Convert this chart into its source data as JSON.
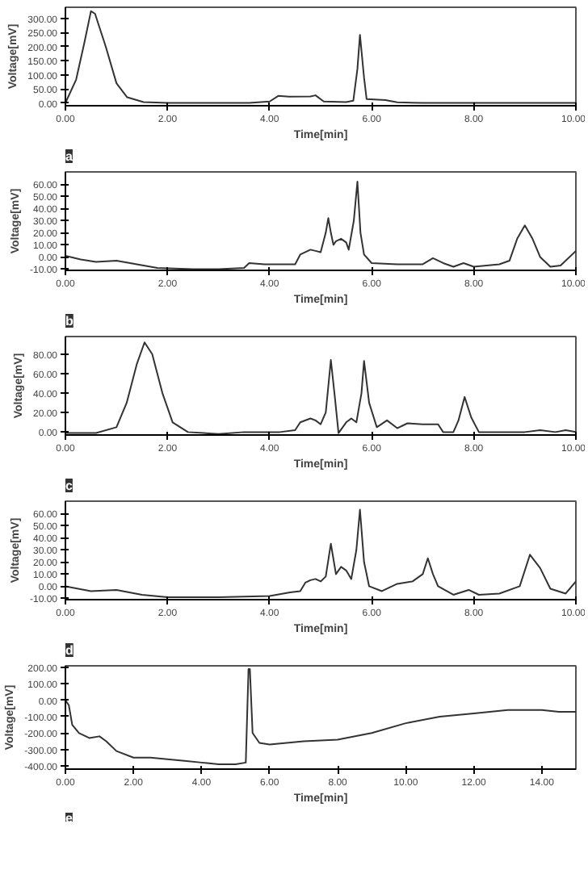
{
  "chart_data": [
    {
      "type": "line",
      "xlabel": "Time[min]",
      "ylabel": "Voltage[mV]",
      "annotations": [
        "a"
      ],
      "grid": false,
      "marker": "none",
      "line_style": "solid",
      "xlim": [
        0,
        10
      ],
      "ylim": [
        -10,
        340
      ],
      "xticks": [
        {
          "value": 0,
          "label": "0.00"
        },
        {
          "value": 2,
          "label": "2.00"
        },
        {
          "value": 4,
          "label": "4.00"
        },
        {
          "value": 6,
          "label": "6.00"
        },
        {
          "value": 8,
          "label": "8.00"
        },
        {
          "value": 10,
          "label": "10.00"
        }
      ],
      "yticks": [
        {
          "value": 0,
          "label": "0.00"
        },
        {
          "value": 50,
          "label": "50.00"
        },
        {
          "value": 100,
          "label": "100.00"
        },
        {
          "value": 150,
          "label": "150.00"
        },
        {
          "value": 200,
          "label": "200.00"
        },
        {
          "value": 250,
          "label": "250.00"
        },
        {
          "value": 300,
          "label": "300.00"
        }
      ],
      "series": [
        {
          "color": "#333333",
          "x": [
            0,
            0.21,
            0.37,
            0.5,
            0.58,
            0.79,
            1.0,
            1.21,
            1.53,
            2.0,
            3.0,
            3.6,
            4.0,
            4.17,
            4.38,
            4.8,
            4.9,
            5.06,
            5.5,
            5.64,
            5.72,
            5.77,
            5.85,
            5.9,
            6.27,
            6.5,
            7.0,
            8.0,
            9.0,
            10.0
          ],
          "values": [
            0,
            83,
            213,
            326,
            317,
            200,
            70,
            20,
            3,
            0,
            0,
            0,
            5,
            25,
            22,
            23,
            27,
            5,
            3,
            8,
            120,
            242,
            90,
            14,
            10,
            2,
            0,
            0,
            0,
            0
          ]
        }
      ]
    },
    {
      "type": "line",
      "xlabel": "Time[min]",
      "ylabel": "Voltage[mV]",
      "annotations": [
        "b"
      ],
      "grid": false,
      "marker": "none",
      "line_style": "solid",
      "xlim": [
        0,
        10
      ],
      "ylim": [
        -11,
        70
      ],
      "xticks": [
        {
          "value": 0,
          "label": "0.00"
        },
        {
          "value": 2,
          "label": "2.00"
        },
        {
          "value": 4,
          "label": "4.00"
        },
        {
          "value": 6,
          "label": "6.00"
        },
        {
          "value": 8,
          "label": "8.00"
        },
        {
          "value": 10,
          "label": "10.00"
        }
      ],
      "yticks": [
        {
          "value": -10,
          "label": "-10.00"
        },
        {
          "value": 0,
          "label": "0.00"
        },
        {
          "value": 10,
          "label": "10.00"
        },
        {
          "value": 20,
          "label": "20.00"
        },
        {
          "value": 30,
          "label": "30.00"
        },
        {
          "value": 40,
          "label": "40.00"
        },
        {
          "value": 50,
          "label": "50.00"
        },
        {
          "value": 60,
          "label": "60.00"
        }
      ],
      "series": [
        {
          "color": "#333333",
          "x": [
            0,
            0.3,
            0.6,
            1.0,
            1.4,
            1.8,
            2.5,
            3.0,
            3.5,
            3.6,
            3.9,
            4.2,
            4.5,
            4.6,
            4.7,
            4.8,
            4.9,
            5.0,
            5.1,
            5.15,
            5.2,
            5.25,
            5.3,
            5.4,
            5.5,
            5.55,
            5.65,
            5.72,
            5.78,
            5.85,
            6.0,
            6.5,
            7.0,
            7.2,
            7.4,
            7.6,
            7.8,
            8.0,
            8.5,
            8.7,
            8.85,
            9.0,
            9.15,
            9.3,
            9.5,
            9.7,
            10.0
          ],
          "values": [
            1,
            -2,
            -4,
            -3,
            -6,
            -9,
            -10,
            -10,
            -9,
            -5,
            -6,
            -6,
            -6,
            2,
            4,
            6,
            5,
            4,
            20,
            32,
            20,
            10,
            13,
            15,
            12,
            6,
            30,
            62,
            20,
            2,
            -5,
            -6,
            -6,
            -1,
            -5,
            -8,
            -5,
            -8,
            -6,
            -3,
            15,
            26,
            15,
            0,
            -8,
            -7,
            5
          ]
        }
      ]
    },
    {
      "type": "line",
      "xlabel": "Time[min]",
      "ylabel": "Voltage[mV]",
      "annotations": [
        "c"
      ],
      "grid": false,
      "marker": "none",
      "line_style": "solid",
      "xlim": [
        0,
        10
      ],
      "ylim": [
        -3,
        98
      ],
      "xticks": [
        {
          "value": 0,
          "label": "0.00"
        },
        {
          "value": 2,
          "label": "2.00"
        },
        {
          "value": 4,
          "label": "4.00"
        },
        {
          "value": 6,
          "label": "6.00"
        },
        {
          "value": 8,
          "label": "8.00"
        },
        {
          "value": 10,
          "label": "10.00"
        }
      ],
      "yticks": [
        {
          "value": 0,
          "label": "0.00"
        },
        {
          "value": 20,
          "label": "20.00"
        },
        {
          "value": 40,
          "label": "40.00"
        },
        {
          "value": 60,
          "label": "60.00"
        },
        {
          "value": 80,
          "label": "80.00"
        }
      ],
      "series": [
        {
          "color": "#333333",
          "x": [
            0,
            0.6,
            1.0,
            1.2,
            1.4,
            1.55,
            1.7,
            1.9,
            2.1,
            2.4,
            3.0,
            3.5,
            4.2,
            4.5,
            4.6,
            4.8,
            4.9,
            5.0,
            5.1,
            5.2,
            5.28,
            5.35,
            5.5,
            5.6,
            5.7,
            5.8,
            5.85,
            5.95,
            6.1,
            6.3,
            6.5,
            6.7,
            7.0,
            7.3,
            7.4,
            7.6,
            7.7,
            7.82,
            7.95,
            8.1,
            9.0,
            9.3,
            9.6,
            9.8,
            10.0
          ],
          "values": [
            -1,
            -1,
            5,
            30,
            70,
            92,
            80,
            40,
            10,
            0,
            -2,
            0,
            0,
            2,
            10,
            14,
            12,
            8,
            20,
            74,
            35,
            -1,
            10,
            14,
            10,
            40,
            73,
            30,
            5,
            12,
            4,
            9,
            8,
            8,
            0,
            0,
            12,
            36,
            15,
            0,
            0,
            2,
            0,
            2,
            0
          ]
        }
      ]
    },
    {
      "type": "line",
      "xlabel": "Time[min]",
      "ylabel": "Voltage[mV]",
      "annotations": [
        "d"
      ],
      "grid": false,
      "marker": "none",
      "line_style": "solid",
      "xlim": [
        0,
        10
      ],
      "ylim": [
        -11,
        70
      ],
      "xticks": [
        {
          "value": 0,
          "label": "0.00"
        },
        {
          "value": 2,
          "label": "2.00"
        },
        {
          "value": 4,
          "label": "4.00"
        },
        {
          "value": 6,
          "label": "6.00"
        },
        {
          "value": 8,
          "label": "8.00"
        },
        {
          "value": 10,
          "label": "10.00"
        }
      ],
      "yticks": [
        {
          "value": -10,
          "label": "-10.00"
        },
        {
          "value": 0,
          "label": "0.00"
        },
        {
          "value": 10,
          "label": "10.00"
        },
        {
          "value": 20,
          "label": "20.00"
        },
        {
          "value": 30,
          "label": "30.00"
        },
        {
          "value": 40,
          "label": "40.00"
        },
        {
          "value": 50,
          "label": "50.00"
        },
        {
          "value": 60,
          "label": "60.00"
        }
      ],
      "series": [
        {
          "color": "#333333",
          "x": [
            0,
            0.5,
            1.0,
            1.5,
            2.0,
            3.0,
            4.0,
            4.4,
            4.6,
            4.7,
            4.8,
            4.9,
            5.0,
            5.1,
            5.2,
            5.3,
            5.4,
            5.5,
            5.6,
            5.7,
            5.77,
            5.85,
            5.95,
            6.2,
            6.5,
            6.8,
            7.0,
            7.1,
            7.2,
            7.3,
            7.6,
            7.9,
            8.1,
            8.5,
            8.9,
            9.1,
            9.3,
            9.5,
            9.8,
            10.0
          ],
          "values": [
            0,
            -4,
            -3,
            -7,
            -9,
            -9,
            -8,
            -5,
            -4,
            3,
            5,
            6,
            4,
            8,
            35,
            10,
            16,
            13,
            6,
            30,
            63,
            20,
            0,
            -4,
            2,
            4,
            10,
            23,
            10,
            0,
            -7,
            -3,
            -7,
            -6,
            0,
            26,
            15,
            -2,
            -6,
            4
          ]
        }
      ]
    },
    {
      "type": "line",
      "xlabel": "Time[min]",
      "ylabel": "Voltage[mV]",
      "annotations": [
        "e"
      ],
      "grid": false,
      "marker": "none",
      "line_style": "solid",
      "xlim": [
        0,
        15
      ],
      "ylim": [
        -420,
        210
      ],
      "xticks": [
        {
          "value": 0,
          "label": "0.00"
        },
        {
          "value": 2,
          "label": "2.00"
        },
        {
          "value": 4,
          "label": "4.00"
        },
        {
          "value": 6,
          "label": "6.00"
        },
        {
          "value": 8,
          "label": "8.00"
        },
        {
          "value": 10,
          "label": "10.00"
        },
        {
          "value": 12,
          "label": "12.00"
        },
        {
          "value": 14,
          "label": "14.00"
        }
      ],
      "yticks": [
        {
          "value": -400,
          "label": "-400.00"
        },
        {
          "value": -300,
          "label": "-300.00"
        },
        {
          "value": -200,
          "label": "-200.00"
        },
        {
          "value": -100,
          "label": "-100.00"
        },
        {
          "value": 0,
          "label": "0.00"
        },
        {
          "value": 100,
          "label": "100.00"
        },
        {
          "value": 200,
          "label": "200.00"
        }
      ],
      "series": [
        {
          "color": "#333333",
          "x": [
            0,
            0.1,
            0.2,
            0.4,
            0.7,
            1.0,
            1.2,
            1.5,
            2.0,
            2.5,
            3.0,
            3.5,
            4.0,
            4.5,
            5.0,
            5.3,
            5.38,
            5.42,
            5.5,
            5.7,
            6.0,
            6.5,
            7.0,
            8.0,
            9.0,
            10.0,
            11.0,
            12.0,
            13.0,
            14.0,
            14.5,
            15.0
          ],
          "values": [
            0,
            -30,
            -150,
            -200,
            -230,
            -220,
            -250,
            -310,
            -350,
            -350,
            -360,
            -370,
            -380,
            -390,
            -390,
            -380,
            190,
            190,
            -200,
            -260,
            -270,
            -260,
            -250,
            -240,
            -200,
            -140,
            -100,
            -80,
            -60,
            -60,
            -70,
            -70
          ]
        }
      ]
    }
  ]
}
